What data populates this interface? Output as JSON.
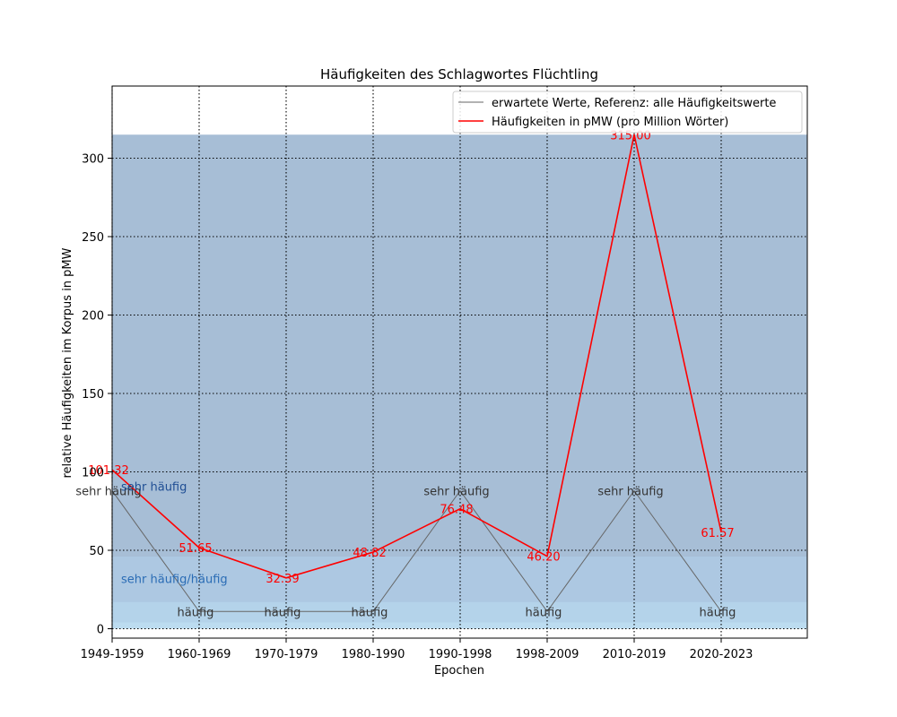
{
  "chart_data": {
    "type": "line",
    "title": "Häufigkeiten des Schlagwortes Flüchtling",
    "xlabel": "Epochen",
    "ylabel": "relative Häufigkeiten im Korpus in pMW",
    "categories": [
      "1949-1959",
      "1960-1969",
      "1970-1979",
      "1980-1990",
      "1990-1998",
      "1998-2009",
      "2010-2019",
      "2020-2023"
    ],
    "ylim": [
      -6,
      346
    ],
    "yticks": [
      0,
      50,
      100,
      150,
      200,
      250,
      300
    ],
    "grid": true,
    "legend_position": "top-right",
    "bands": [
      {
        "from": 0,
        "to": 315,
        "color": "#a7bed6"
      },
      {
        "from": 0,
        "to": 46,
        "color": "#adc8e2"
      },
      {
        "from": 0,
        "to": 17,
        "color": "#b4d3ea"
      },
      {
        "from": 0,
        "to": 4,
        "color": "#bcdcf0"
      }
    ],
    "band_labels": [
      {
        "text": "sehr häufig",
        "y": 91,
        "color": "#1f4e94"
      },
      {
        "text": "sehr häufig/häufig",
        "y": 32,
        "color": "#2a6cb5"
      }
    ],
    "series": [
      {
        "name": "erwartete Werte, Referenz: alle Häufigkeitswerte",
        "color": "#666666",
        "values": [
          88,
          11,
          11,
          11,
          88,
          11,
          88,
          11
        ],
        "point_labels": [
          "sehr häufig",
          "häufig",
          "häufig",
          "häufig",
          "sehr häufig",
          "häufig",
          "sehr häufig",
          "häufig"
        ],
        "label_color": "#333333"
      },
      {
        "name": "Häufigkeiten in pMW (pro Million Wörter)",
        "color": "#ff0000",
        "values": [
          101.32,
          51.65,
          32.39,
          48.82,
          76.48,
          46.2,
          315.0,
          61.57
        ],
        "point_labels": [
          "101.32",
          "51.65",
          "32.39",
          "48.82",
          "76.48",
          "46.20",
          "315.00",
          "61.57"
        ],
        "label_color": "#ff0000"
      }
    ]
  }
}
